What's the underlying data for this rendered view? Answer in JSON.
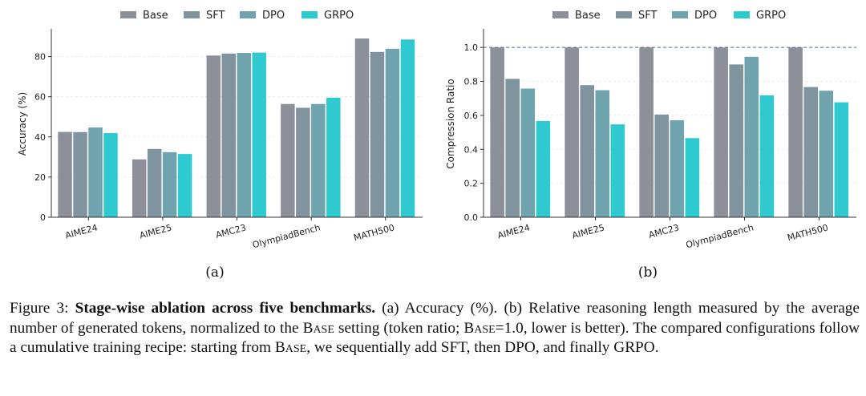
{
  "legend": [
    {
      "name": "Base",
      "color": "#8d8f99"
    },
    {
      "name": "SFT",
      "color": "#7f949f"
    },
    {
      "name": "DPO",
      "color": "#6fa3ad"
    },
    {
      "name": "GRPO",
      "color": "#2ecad0"
    }
  ],
  "chart_data": [
    {
      "type": "bar",
      "subtitle": "(a)",
      "ylabel": "Accuracy (%)",
      "ylim": [
        0,
        93
      ],
      "yticks": [
        0,
        20,
        40,
        60,
        80
      ],
      "ytick_labels": [
        "0",
        "20",
        "40",
        "60",
        "80"
      ],
      "grid": true,
      "legend_position": "top-center",
      "categories": [
        "AIME24",
        "AIME25",
        "AMC23",
        "OlympiadBench",
        "MATH500"
      ],
      "series": [
        {
          "name": "Base",
          "values": [
            42.5,
            28.8,
            80.5,
            56.4,
            89.0
          ]
        },
        {
          "name": "SFT",
          "values": [
            42.4,
            34.0,
            81.5,
            54.5,
            82.3
          ]
        },
        {
          "name": "DPO",
          "values": [
            44.7,
            32.4,
            81.8,
            56.4,
            83.9
          ]
        },
        {
          "name": "GRPO",
          "values": [
            41.9,
            31.5,
            82.0,
            59.5,
            88.5
          ]
        }
      ]
    },
    {
      "type": "bar",
      "subtitle": "(b)",
      "ylabel": "Compression Ratio",
      "ylim": [
        0,
        1.1
      ],
      "yticks": [
        0,
        0.2,
        0.4,
        0.6,
        0.8,
        1.0
      ],
      "ytick_labels": [
        "0.0",
        "0.2",
        "0.4",
        "0.6",
        "0.8",
        "1.0"
      ],
      "grid": true,
      "reference_line": 1.0,
      "legend_position": "top-center",
      "categories": [
        "AIME24",
        "AIME25",
        "AMC23",
        "OlympiadBench",
        "MATH500"
      ],
      "series": [
        {
          "name": "Base",
          "values": [
            1.0,
            1.0,
            1.0,
            1.0,
            1.0
          ]
        },
        {
          "name": "SFT",
          "values": [
            0.815,
            0.778,
            0.605,
            0.9,
            0.767
          ]
        },
        {
          "name": "DPO",
          "values": [
            0.758,
            0.748,
            0.571,
            0.945,
            0.745
          ]
        },
        {
          "name": "GRPO",
          "values": [
            0.567,
            0.547,
            0.466,
            0.718,
            0.677
          ]
        }
      ]
    }
  ],
  "caption": {
    "label": "Figure 3:",
    "title": "Stage-wise ablation across five benchmarks.",
    "text_1": "(a) Accuracy (%). (b) Relative reasoning length measured by the average number of generated tokens, normalized to the",
    "base_1": "Base",
    "text_2": "setting (token ratio;",
    "base_2": "Base",
    "text_3": "=1.0, lower is better). The compared configurations follow a cumulative training recipe: starting from",
    "base_3": "Base",
    "text_4": ", we sequentially add SFT, then DPO, and finally GRPO."
  }
}
